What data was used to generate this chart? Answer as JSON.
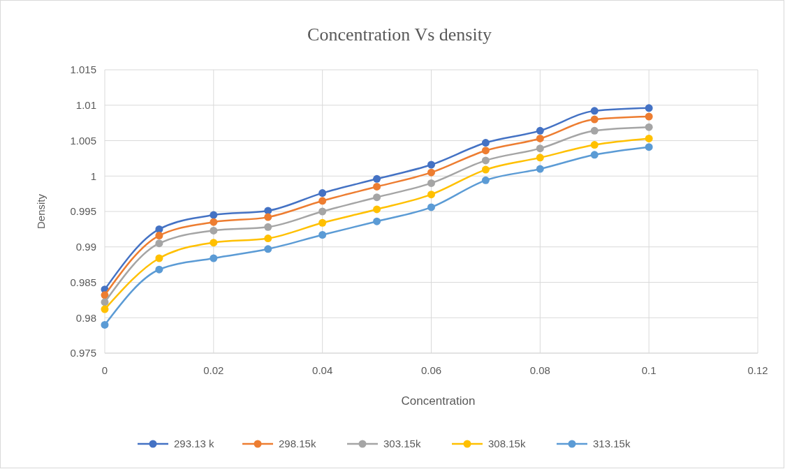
{
  "chart_data": {
    "type": "line",
    "title": "Concentration Vs density",
    "xlabel": "Concentration",
    "ylabel": "Density",
    "x": [
      0,
      0.01,
      0.02,
      0.03,
      0.04,
      0.05,
      0.06,
      0.07,
      0.08,
      0.09,
      0.1
    ],
    "series": [
      {
        "name": "293.13 k",
        "color": "#4472c4",
        "values": [
          0.984,
          0.9925,
          0.9945,
          0.9951,
          0.9976,
          0.9996,
          1.0016,
          1.0047,
          1.0064,
          1.0092,
          1.0096
        ]
      },
      {
        "name": "298.15k",
        "color": "#ed7d31",
        "values": [
          0.9832,
          0.9916,
          0.9935,
          0.9942,
          0.9965,
          0.9985,
          1.0005,
          1.0036,
          1.0053,
          1.008,
          1.0084
        ]
      },
      {
        "name": "303.15k",
        "color": "#a5a5a5",
        "values": [
          0.9822,
          0.9905,
          0.9923,
          0.9928,
          0.995,
          0.997,
          0.999,
          1.0022,
          1.0039,
          1.0064,
          1.0069
        ]
      },
      {
        "name": "308.15k",
        "color": "#ffc000",
        "values": [
          0.9812,
          0.9884,
          0.9906,
          0.9912,
          0.9934,
          0.9953,
          0.9974,
          1.0009,
          1.0026,
          1.0044,
          1.0053
        ]
      },
      {
        "name": "313.15k",
        "color": "#5b9bd5",
        "values": [
          0.979,
          0.9868,
          0.9884,
          0.9897,
          0.9917,
          0.9936,
          0.9956,
          0.9994,
          1.001,
          1.003,
          1.0041
        ]
      }
    ],
    "xlim": [
      0,
      0.12
    ],
    "xticks": [
      0,
      0.02,
      0.04,
      0.06,
      0.08,
      0.1,
      0.12
    ],
    "ylim": [
      0.975,
      1.015
    ],
    "yticks": [
      0.975,
      0.98,
      0.985,
      0.99,
      0.995,
      1,
      1.005,
      1.01,
      1.015
    ],
    "grid": true,
    "legend": "bottom",
    "marker": "circle",
    "line_style": "solid"
  }
}
